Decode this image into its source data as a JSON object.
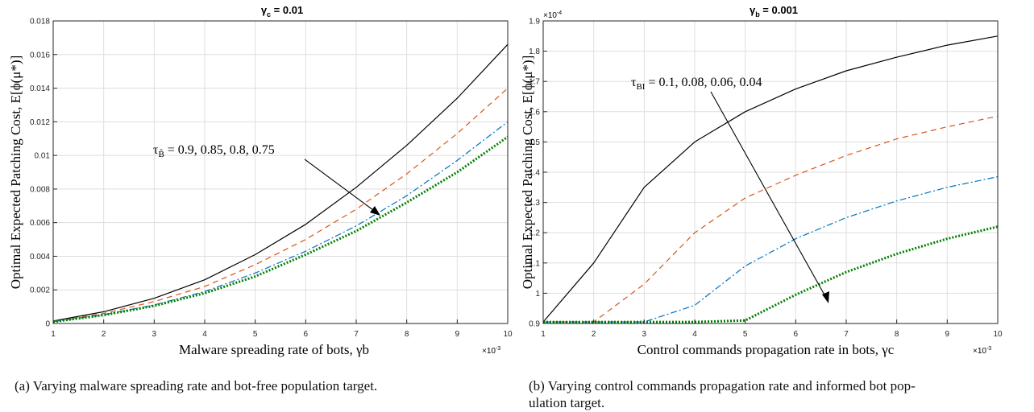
{
  "charts": [
    {
      "title": "γc = 0.01",
      "title_main": "γ",
      "title_sub": "c",
      "title_rest": " = 0.01",
      "ylabel": "Optimal Expected Patching Cost, E[ϕ(μ*)]",
      "xlabel": "Malware spreading rate of bots, γb",
      "x_exponent_base": "×10",
      "x_exponent_power": "-3",
      "annotation": "τB̂ = 0.9, 0.85, 0.8, 0.75",
      "annotation_main": "τ",
      "annotation_sub": "B̂",
      "annotation_rest": " = 0.9, 0.85, 0.8, 0.75"
    },
    {
      "title": "γb = 0.001",
      "title_main": "γ",
      "title_sub": "b",
      "title_rest": " = 0.001",
      "ylabel": "Optimal Expected Patching Cost, E[ϕ(μ*)]",
      "xlabel": "Control commands propagation rate in bots, γc",
      "x_exponent_base": "×10",
      "x_exponent_power": "-3",
      "y_exponent_base": "×10",
      "y_exponent_power": "-4",
      "annotation": "τBI = 0.1, 0.08, 0.06, 0.04",
      "annotation_main": "τ",
      "annotation_sub": "BI",
      "annotation_rest": " = 0.1, 0.08, 0.06, 0.04"
    }
  ],
  "chart_data": [
    {
      "type": "line",
      "title": "γc = 0.01",
      "xlabel": "Malware spreading rate of bots, γb",
      "ylabel": "Optimal Expected Patching Cost, E[ϕ(μ*)]",
      "x": [
        1,
        2,
        3,
        4,
        5,
        6,
        7,
        8,
        9,
        10
      ],
      "x_scale_note": "×10^-3",
      "xlim": [
        1,
        10
      ],
      "ylim": [
        0,
        0.018
      ],
      "xticks": [
        1,
        2,
        3,
        4,
        5,
        6,
        7,
        8,
        9,
        10
      ],
      "yticks": [
        0,
        0.002,
        0.004,
        0.006,
        0.008,
        0.01,
        0.012,
        0.014,
        0.016,
        0.018
      ],
      "ytick_labels": [
        "0",
        "0.002",
        "0.004",
        "0.006",
        "0.008",
        "0.01",
        "0.012",
        "0.014",
        "0.016",
        "0.018"
      ],
      "grid": true,
      "series": [
        {
          "values": [
            0.00015,
            0.0007,
            0.0015,
            0.0026,
            0.0041,
            0.0059,
            0.0081,
            0.0106,
            0.0134,
            0.0166
          ],
          "color": "#000000",
          "dash": ""
        },
        {
          "values": [
            0.00013,
            0.0006,
            0.0013,
            0.0022,
            0.0035,
            0.005,
            0.0068,
            0.0089,
            0.0113,
            0.014
          ],
          "color": "#d95319",
          "dash": "7,5"
        },
        {
          "values": [
            0.00011,
            0.00052,
            0.0011,
            0.0019,
            0.003,
            0.0043,
            0.0058,
            0.0076,
            0.0097,
            0.012
          ],
          "color": "#0072bd",
          "dash": "8,3,2,3"
        },
        {
          "values": [
            0.0001,
            0.0005,
            0.00105,
            0.0018,
            0.0028,
            0.0041,
            0.0055,
            0.0072,
            0.009,
            0.0111
          ],
          "color": "#008000",
          "dash": "2,2",
          "width": 3
        }
      ]
    },
    {
      "type": "line",
      "title": "γb = 0.001",
      "xlabel": "Control commands propagation rate in bots, γc",
      "ylabel": "Optimal Expected Patching Cost, E[ϕ(μ*)]",
      "x": [
        1,
        2,
        3,
        4,
        5,
        6,
        7,
        8,
        9,
        10
      ],
      "x_scale_note": "×10^-3",
      "y_scale_note": "×10^-4",
      "xlim": [
        1,
        10
      ],
      "ylim": [
        0.9,
        1.9
      ],
      "xticks": [
        1,
        2,
        3,
        4,
        5,
        6,
        7,
        8,
        9,
        10
      ],
      "yticks": [
        0.9,
        1,
        1.1,
        1.2,
        1.3,
        1.4,
        1.5,
        1.6,
        1.7,
        1.8,
        1.9
      ],
      "ytick_labels": [
        "0.9",
        "1",
        "1.1",
        "1.2",
        "1.3",
        "1.4",
        "1.5",
        "1.6",
        "1.7",
        "1.8",
        "1.9"
      ],
      "grid": true,
      "series": [
        {
          "values": [
            0.905,
            1.1,
            1.35,
            1.5,
            1.6,
            1.675,
            1.735,
            1.78,
            1.82,
            1.85
          ],
          "color": "#000000",
          "dash": ""
        },
        {
          "values": [
            0.905,
            0.905,
            1.03,
            1.2,
            1.315,
            1.39,
            1.455,
            1.51,
            1.55,
            1.585
          ],
          "color": "#d95319",
          "dash": "7,5"
        },
        {
          "values": [
            0.905,
            0.905,
            0.905,
            0.96,
            1.09,
            1.18,
            1.25,
            1.305,
            1.35,
            1.385
          ],
          "color": "#0072bd",
          "dash": "8,3,2,3"
        },
        {
          "values": [
            0.905,
            0.905,
            0.905,
            0.905,
            0.91,
            0.995,
            1.07,
            1.13,
            1.18,
            1.22
          ],
          "color": "#008000",
          "dash": "2,2",
          "width": 3
        }
      ]
    }
  ],
  "captions": [
    "(a) Varying malware spreading rate and bot-free population target.",
    "(b) Varying control commands propagation rate and informed bot pop-",
    "ulation target."
  ]
}
